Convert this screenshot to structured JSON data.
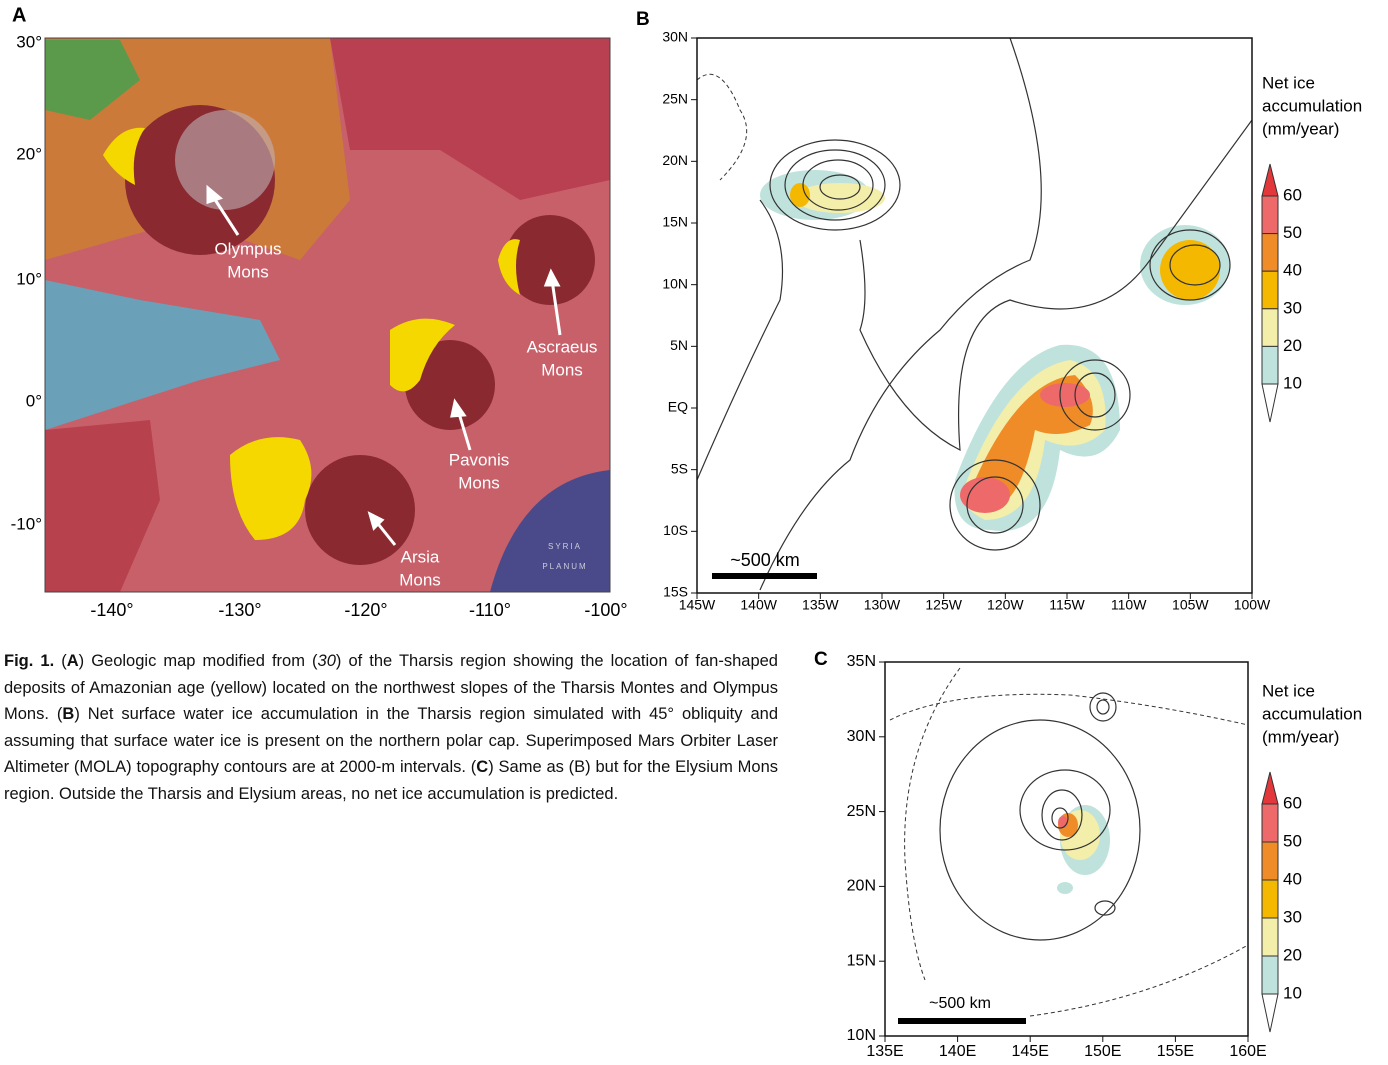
{
  "panel_a": {
    "label": "A",
    "y_ticks": [
      "30°",
      "20°",
      "10°",
      "0°",
      "-10°"
    ],
    "x_ticks": [
      "-140°",
      "-130°",
      "-120°",
      "-110°",
      "-100°"
    ],
    "annotations": [
      {
        "lines": [
          "Olympus",
          "Mons"
        ]
      },
      {
        "lines": [
          "Ascraeus",
          "Mons"
        ]
      },
      {
        "lines": [
          "Pavonis",
          "Mons"
        ]
      },
      {
        "lines": [
          "Arsia",
          "Mons"
        ]
      }
    ],
    "map_label": [
      "SYRIA",
      "PLANUM"
    ]
  },
  "panel_b": {
    "label": "B",
    "y_ticks": [
      "30N",
      "25N",
      "20N",
      "15N",
      "10N",
      "5N",
      "EQ",
      "5S",
      "10S",
      "15S"
    ],
    "x_ticks": [
      "145W",
      "140W",
      "135W",
      "130W",
      "125W",
      "120W",
      "115W",
      "110W",
      "105W",
      "100W"
    ],
    "scale_bar": "~500 km",
    "colorbar": {
      "title": [
        "Net ice",
        "accumulation",
        "(mm/year)"
      ],
      "ticks": [
        "60",
        "50",
        "40",
        "30",
        "20",
        "10"
      ]
    }
  },
  "panel_c": {
    "label": "C",
    "y_ticks": [
      "35N",
      "30N",
      "25N",
      "20N",
      "15N",
      "10N"
    ],
    "x_ticks": [
      "135E",
      "140E",
      "145E",
      "150E",
      "155E",
      "160E"
    ],
    "scale_bar": "~500 km",
    "colorbar": {
      "title": [
        "Net ice",
        "accumulation",
        "(mm/year)"
      ],
      "ticks": [
        "60",
        "50",
        "40",
        "30",
        "20",
        "10"
      ]
    }
  },
  "caption": [
    {
      "text": "Fig. 1.",
      "style": "bold"
    },
    {
      "text": " (",
      "style": "normal"
    },
    {
      "text": "A",
      "style": "bold"
    },
    {
      "text": ") Geologic map modified from (",
      "style": "normal"
    },
    {
      "text": "30",
      "style": "italic"
    },
    {
      "text": ") of the Tharsis region showing the location of fan-shaped deposits of Amazonian age (yellow) located on the northwest slopes of the Tharsis Montes and Olympus Mons. (",
      "style": "normal"
    },
    {
      "text": "B",
      "style": "bold"
    },
    {
      "text": ") Net surface water ice accumulation in the Tharsis region simulated with 45° obliquity and assuming that surface water ice is present on the northern polar cap. Superimposed Mars Orbiter Laser Altimeter (MOLA) topography contours are at 2000-m intervals. (",
      "style": "normal"
    },
    {
      "text": "C",
      "style": "bold"
    },
    {
      "text": ") Same as (B) but for the Elysium Mons region. Outside the Tharsis and Elysium areas, no net ice accumulation is predicted.",
      "style": "normal"
    }
  ]
}
